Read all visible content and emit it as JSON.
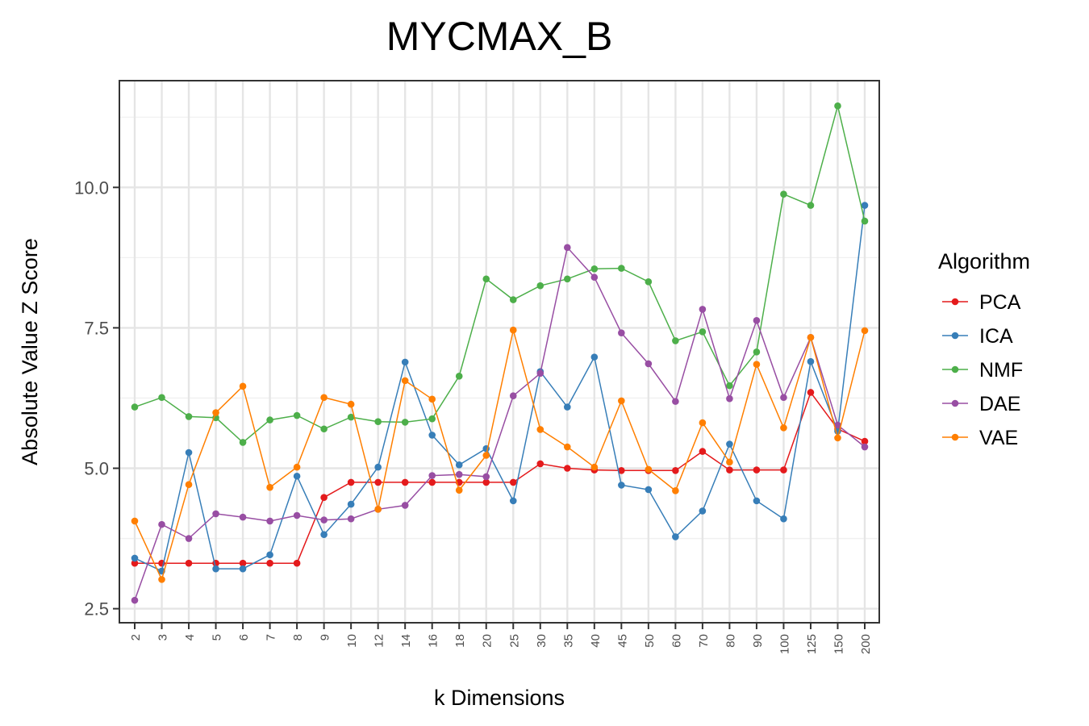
{
  "chart_data": {
    "type": "line",
    "title": "MYCMAX_B",
    "xlabel": "k Dimensions",
    "ylabel": "Absolute Value Z Score",
    "ylim": [
      2.25,
      11.9
    ],
    "yticks": [
      "2.5",
      "5.0",
      "7.5",
      "10.0"
    ],
    "grid": true,
    "legend_title": "Algorithm",
    "legend_position": "right",
    "categories": [
      "2",
      "3",
      "4",
      "5",
      "6",
      "7",
      "8",
      "9",
      "10",
      "12",
      "14",
      "16",
      "18",
      "20",
      "25",
      "30",
      "35",
      "40",
      "45",
      "50",
      "60",
      "70",
      "80",
      "90",
      "100",
      "125",
      "150",
      "200"
    ],
    "series": [
      {
        "name": "PCA",
        "color": "#e41a1c",
        "values": [
          3.31,
          3.31,
          3.31,
          3.31,
          3.31,
          3.31,
          3.31,
          4.48,
          4.75,
          4.75,
          4.75,
          4.75,
          4.75,
          4.75,
          4.75,
          5.08,
          5.0,
          4.97,
          4.96,
          4.96,
          4.96,
          5.3,
          4.97,
          4.97,
          4.97,
          6.35,
          5.7,
          5.48
        ]
      },
      {
        "name": "ICA",
        "color": "#377eb8",
        "values": [
          3.4,
          3.17,
          5.28,
          3.21,
          3.21,
          3.46,
          4.86,
          3.82,
          4.36,
          5.02,
          6.89,
          5.59,
          5.06,
          5.35,
          4.42,
          6.72,
          6.09,
          6.98,
          4.7,
          4.62,
          3.78,
          4.24,
          5.43,
          4.42,
          4.1,
          6.9,
          5.66,
          9.68
        ]
      },
      {
        "name": "NMF",
        "color": "#4daf4a",
        "values": [
          6.09,
          6.26,
          5.92,
          5.9,
          5.46,
          5.86,
          5.94,
          5.7,
          5.91,
          5.83,
          5.82,
          5.88,
          6.64,
          8.37,
          8.0,
          8.25,
          8.37,
          8.55,
          8.56,
          8.32,
          7.27,
          7.43,
          6.47,
          7.07,
          9.88,
          9.68,
          11.45,
          9.4
        ]
      },
      {
        "name": "DAE",
        "color": "#984ea3",
        "values": [
          2.65,
          4.0,
          3.75,
          4.19,
          4.13,
          4.06,
          4.16,
          4.08,
          4.1,
          4.27,
          4.34,
          4.87,
          4.89,
          4.85,
          6.29,
          6.69,
          8.93,
          8.4,
          7.41,
          6.86,
          6.19,
          7.83,
          6.24,
          7.63,
          6.26,
          7.33,
          5.77,
          5.38
        ]
      },
      {
        "name": "VAE",
        "color": "#ff7f00",
        "values": [
          4.06,
          3.02,
          4.71,
          5.99,
          6.46,
          4.66,
          5.02,
          6.26,
          6.14,
          4.27,
          6.56,
          6.23,
          4.61,
          5.23,
          7.46,
          5.69,
          5.38,
          5.02,
          6.2,
          4.98,
          4.6,
          5.81,
          5.11,
          6.85,
          5.72,
          7.33,
          5.54,
          7.45
        ]
      }
    ]
  }
}
